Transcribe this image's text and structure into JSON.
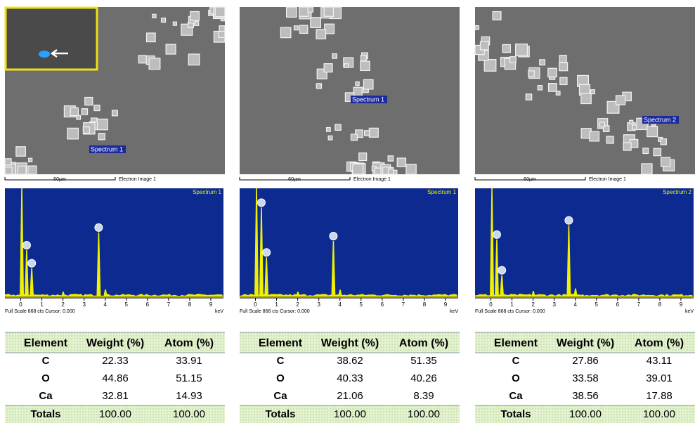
{
  "panels": [
    {
      "image": {
        "scale": "60µm",
        "label": "Electron Image 1",
        "spectrum_label": "Spectrum 1"
      },
      "spectrum": {
        "title": "Spectrum 1",
        "footer": "Full Scale 868 cts Cursor: 0.000",
        "unit": "keV",
        "xlim": [
          -0.75,
          9.6
        ],
        "ylim": [
          0,
          868
        ],
        "xticks": [
          0,
          1,
          2,
          3,
          4,
          5,
          6,
          7,
          8,
          9
        ],
        "peaks_kev": [
          0.05,
          0.28,
          0.52,
          2.01,
          3.69,
          4.01
        ],
        "peak_counts": [
          868,
          375,
          232,
          45,
          516,
          62
        ]
      },
      "table": {
        "header": [
          "Element",
          "Weight (%)",
          "Atom (%)"
        ],
        "rows": [
          [
            "C",
            "22.33",
            "33.91"
          ],
          [
            "O",
            "44.86",
            "51.15"
          ],
          [
            "Ca",
            "32.81",
            "14.93"
          ],
          [
            "Totals",
            "100.00",
            "100.00"
          ]
        ]
      }
    },
    {
      "image": {
        "scale": "60µm",
        "label": "Electron Image 1",
        "spectrum_label": "Spectrum 1"
      },
      "spectrum": {
        "title": "Spectrum 1",
        "footer": "Full Scale 868 cts Cursor: 0.000",
        "unit": "keV",
        "xlim": [
          -0.75,
          9.6
        ],
        "ylim": [
          0,
          868
        ],
        "xticks": [
          0,
          1,
          2,
          3,
          4,
          5,
          6,
          7,
          8,
          9
        ],
        "peaks_kev": [
          0.05,
          0.28,
          0.52,
          2.01,
          3.69,
          4.01
        ],
        "peak_counts": [
          868,
          715,
          318,
          45,
          448,
          60
        ]
      },
      "table": {
        "header": [
          "Element",
          "Weight (%)",
          "Atom (%)"
        ],
        "rows": [
          [
            "C",
            "38.62",
            "51.35"
          ],
          [
            "O",
            "40.33",
            "40.26"
          ],
          [
            "Ca",
            "21.06",
            "8.39"
          ],
          [
            "Totals",
            "100.00",
            "100.00"
          ]
        ]
      }
    },
    {
      "image": {
        "scale": "60µm",
        "label": "Electron Image 1",
        "spectrum_label": "Spectrum 2"
      },
      "spectrum": {
        "title": "Spectrum 2",
        "footer": "Full Scale 868 cts Cursor: 0.000",
        "unit": "keV",
        "xlim": [
          -0.75,
          9.6
        ],
        "ylim": [
          0,
          868
        ],
        "xticks": [
          0,
          1,
          2,
          3,
          4,
          5,
          6,
          7,
          8,
          9
        ],
        "peaks_kev": [
          0.05,
          0.28,
          0.52,
          2.01,
          3.69,
          4.01
        ],
        "peak_counts": [
          868,
          460,
          176,
          50,
          573,
          70
        ]
      },
      "table": {
        "header": [
          "Element",
          "Weight (%)",
          "Atom (%)"
        ],
        "rows": [
          [
            "C",
            "27.86",
            "43.11"
          ],
          [
            "O",
            "33.58",
            "39.01"
          ],
          [
            "Ca",
            "38.56",
            "17.88"
          ],
          [
            "Totals",
            "100.00",
            "100.00"
          ]
        ]
      }
    }
  ]
}
